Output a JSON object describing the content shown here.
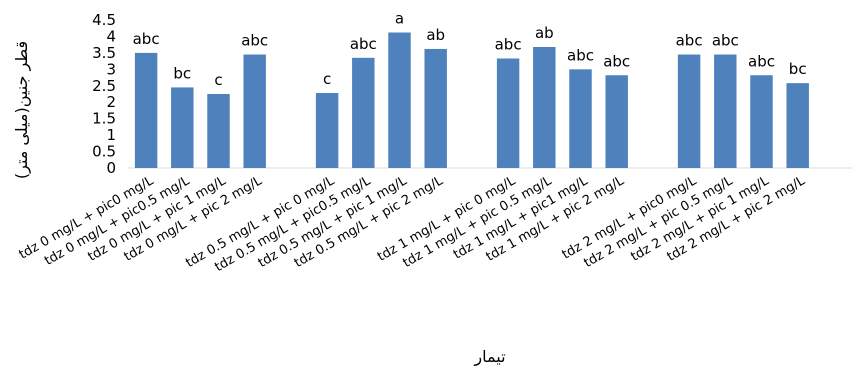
{
  "chart_data": {
    "type": "bar",
    "xlabel": "تیمار",
    "ylabel": "قطر جنین(میلی متر)",
    "ylim": [
      0,
      4.5
    ],
    "yticks": [
      "4.5",
      "4",
      "3.5",
      "3",
      "2.5",
      "2",
      "1.5",
      "1",
      "0.5",
      "0"
    ],
    "grid": false,
    "legend": "none",
    "bar_color": "#4F81BD",
    "groups": [
      {
        "categories": [
          "tdz 0 mg/L + pic0 mg/L",
          "tdz 0 mg/L + pic0.5 mg/L",
          "tdz 0 mg/L + pic 1 mg/L",
          "tdz 0 mg/L + pic 2 mg/L"
        ],
        "values": [
          3.5,
          2.45,
          2.25,
          3.45
        ],
        "labels": [
          "abc",
          "bc",
          "c",
          "abc"
        ]
      },
      {
        "categories": [
          "tdz 0.5 mg/L + pic 0 mg/L",
          "tdz 0.5 mg/L + pic0.5 mg/L",
          "tdz 0.5 mg/L + pic 1 mg/L",
          "tdz 0.5 mg/L + pic 2 mg/L"
        ],
        "values": [
          2.28,
          3.35,
          4.12,
          3.62
        ],
        "labels": [
          "c",
          "abc",
          "a",
          "ab"
        ]
      },
      {
        "categories": [
          "tdz 1 mg/L + pic 0 mg/L",
          "tdz 1 mg/L + pic 0.5 mg/L",
          "tdz 1 mg/L + pic1 mg/L",
          "tdz 1 mg/L + pic 2 mg/L"
        ],
        "values": [
          3.33,
          3.68,
          3.0,
          2.82
        ],
        "labels": [
          "abc",
          "ab",
          "abc",
          "abc"
        ]
      },
      {
        "categories": [
          "tdz 2 mg/L + pic0 mg/L",
          "tdz 2 mg/L + pic 0.5 mg/L",
          "tdz 2 mg/L + pic 1 mg/L",
          "tdz 2 mg/L + pic 2 mg/L"
        ],
        "values": [
          3.45,
          3.45,
          2.82,
          2.58
        ],
        "labels": [
          "abc",
          "abc",
          "abc",
          "bc"
        ]
      }
    ]
  }
}
